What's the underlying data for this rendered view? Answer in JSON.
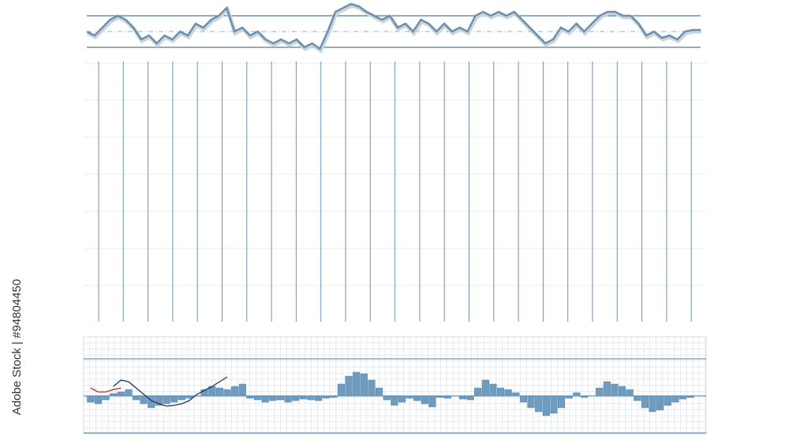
{
  "credit": "Adobe Stock | #94804450",
  "chart_data": [
    {
      "type": "line",
      "color": "#6f8fa8",
      "ylim": [
        20,
        90
      ],
      "values": [
        50,
        45,
        55,
        65,
        70,
        65,
        55,
        40,
        45,
        35,
        45,
        40,
        50,
        45,
        60,
        55,
        65,
        70,
        80,
        50,
        55,
        45,
        50,
        40,
        35,
        40,
        35,
        40,
        30,
        35,
        28,
        50,
        75,
        80,
        85,
        82,
        75,
        70,
        65,
        70,
        55,
        60,
        50,
        65,
        60,
        50,
        60,
        50,
        55,
        50,
        70,
        75,
        70,
        75,
        70,
        75,
        65,
        55,
        45,
        35,
        40,
        55,
        50,
        60,
        50,
        60,
        70,
        75,
        75,
        70,
        70,
        60,
        45,
        50,
        42,
        45,
        40,
        50,
        52,
        52
      ]
    },
    {
      "type": "bar",
      "color": "#6f9bbf",
      "ylim": [
        -47,
        47
      ],
      "values": [
        -8,
        -10,
        -5,
        3,
        5,
        8,
        -5,
        -10,
        -15,
        -12,
        -10,
        -8,
        -5,
        -3,
        0,
        8,
        12,
        10,
        8,
        12,
        15,
        -3,
        -5,
        -8,
        -6,
        -5,
        -8,
        -6,
        -4,
        -5,
        -6,
        -3,
        -2,
        15,
        25,
        30,
        28,
        20,
        10,
        -5,
        -12,
        -8,
        -3,
        -6,
        -10,
        -14,
        -2,
        -3,
        0,
        -4,
        -5,
        10,
        20,
        15,
        10,
        8,
        4,
        -8,
        -15,
        -20,
        -25,
        -22,
        -15,
        -3,
        4,
        -2,
        0,
        10,
        18,
        15,
        12,
        8,
        -6,
        -15,
        -20,
        -18,
        -12,
        -8,
        -4,
        -2
      ],
      "series": [
        {
          "color": "#c0282d",
          "values": [
            10,
            5,
            5,
            8,
            10,
            null,
            null,
            null,
            null,
            null,
            null,
            null,
            null,
            null,
            null,
            null,
            null,
            null,
            null,
            null,
            null,
            null,
            null,
            null,
            null,
            null,
            null,
            null,
            null,
            null,
            null,
            null,
            null,
            null,
            null,
            null,
            null,
            null,
            null,
            null,
            null,
            null,
            null,
            null,
            null,
            null,
            null,
            null,
            null,
            null,
            null,
            null,
            null,
            null,
            null,
            null,
            null,
            null,
            null,
            null,
            null,
            null,
            null,
            null,
            null,
            null,
            null,
            null,
            null,
            null,
            null,
            null,
            null,
            null,
            null,
            null,
            null,
            null,
            null,
            null
          ]
        },
        {
          "color": "#1f3566",
          "values": [
            null,
            null,
            null,
            12,
            20,
            18,
            10,
            2,
            -6,
            -10,
            -13,
            -12,
            -10,
            -6,
            2,
            7,
            12,
            18,
            24,
            null,
            null,
            null,
            null,
            null,
            null,
            null,
            null,
            null,
            null,
            null,
            null,
            null,
            null,
            null,
            null,
            null,
            null,
            null,
            null,
            null,
            null,
            null,
            null,
            null,
            null,
            null,
            null,
            null,
            null,
            null,
            null,
            null,
            null,
            null,
            null,
            null,
            null,
            null,
            null,
            null,
            null,
            null,
            null,
            null,
            null,
            null,
            null,
            null,
            null,
            null,
            null,
            null,
            null,
            null,
            null,
            null,
            null,
            null,
            null,
            null
          ]
        }
      ]
    }
  ]
}
